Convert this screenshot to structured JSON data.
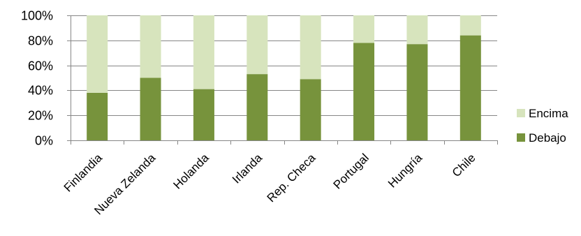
{
  "chart_data": {
    "type": "bar",
    "stacked": true,
    "percent": true,
    "categories": [
      "Finlandia",
      "Nueva Zelanda",
      "Holanda",
      "Irlanda",
      "Rep. Checa",
      "Portugal",
      "Hungría",
      "Chile"
    ],
    "series": [
      {
        "name": "Debajo",
        "values": [
          38,
          50,
          41,
          53,
          49,
          78,
          77,
          84
        ],
        "color": "#77933c"
      },
      {
        "name": "Encima",
        "values": [
          62,
          50,
          59,
          47,
          51,
          22,
          23,
          16
        ],
        "color": "#d7e4bd"
      }
    ],
    "ylim": [
      0,
      100
    ],
    "yticks": [
      "0%",
      "20%",
      "40%",
      "60%",
      "80%",
      "100%"
    ],
    "grid": true,
    "legend": "right",
    "title": "",
    "xlabel": "",
    "ylabel": ""
  }
}
